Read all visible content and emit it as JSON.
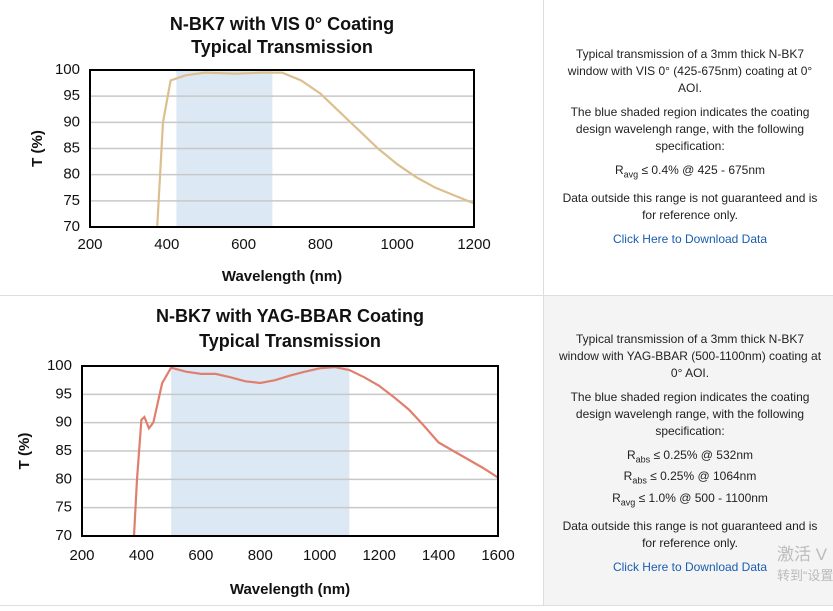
{
  "chart_data": [
    {
      "type": "line",
      "title": [
        "N-BK7 with VIS 0° Coating",
        "Typical Transmission"
      ],
      "x_label": "Wavelength (nm)",
      "y_label": "T (%)",
      "x": [
        375,
        390,
        410,
        450,
        500,
        580,
        650,
        700,
        750,
        800,
        850,
        900,
        950,
        1000,
        1050,
        1100,
        1150,
        1200
      ],
      "values": [
        70,
        90,
        98,
        99,
        99.5,
        99.3,
        99.5,
        99.5,
        98,
        95.5,
        92,
        88.5,
        85,
        82,
        79.5,
        77.5,
        76,
        74.5
      ],
      "color": "#dcbf8f",
      "highlight": [
        425,
        675
      ],
      "highlight_color": "#dce9f5",
      "xlim": [
        200,
        1200
      ],
      "xticks": [
        200,
        400,
        600,
        800,
        1000,
        1200
      ],
      "ylim": [
        70,
        100
      ],
      "yticks": [
        70,
        75,
        80,
        85,
        90,
        95,
        100
      ],
      "grid": true
    },
    {
      "type": "line",
      "title": [
        "N-BK7 with YAG-BBAR Coating",
        "Typical Transmission"
      ],
      "x_label": "Wavelength (nm)",
      "y_label": "T (%)",
      "x": [
        375,
        385,
        400,
        410,
        425,
        440,
        470,
        500,
        550,
        600,
        650,
        700,
        750,
        800,
        850,
        900,
        950,
        1000,
        1050,
        1100,
        1150,
        1200,
        1250,
        1300,
        1350,
        1400,
        1450,
        1500,
        1550,
        1600
      ],
      "values": [
        70,
        80,
        90.5,
        91,
        89,
        90,
        97,
        99.7,
        99,
        98.6,
        98.6,
        98,
        97.3,
        97,
        97.5,
        98.3,
        99,
        99.6,
        99.8,
        99.3,
        98,
        96.5,
        94.5,
        92.3,
        89.5,
        86.5,
        85,
        83.5,
        82,
        80.3
      ],
      "color": "#e07f6e",
      "highlight": [
        500,
        1100
      ],
      "highlight_color": "#dce9f5",
      "xlim": [
        200,
        1600
      ],
      "xticks": [
        200,
        400,
        600,
        800,
        1000,
        1200,
        1400,
        1600
      ],
      "ylim": [
        70,
        100
      ],
      "yticks": [
        70,
        75,
        80,
        85,
        90,
        95,
        100
      ],
      "grid": true
    }
  ],
  "panels": [
    {
      "intro": "Typical transmission of a 3mm thick N-BK7 window with VIS 0° (425-675nm) coating at 0° AOI.",
      "region": "The blue shaded region indicates the coating design wavelengh range, with the following specification:",
      "specs": [
        {
          "symbol": "R",
          "sub": "avg",
          "text": "≤ 0.4% @ 425 - 675nm"
        }
      ],
      "note": "Data outside this range is not guaranteed and is for reference only.",
      "link": "Click Here to Download Data"
    },
    {
      "intro": "Typical transmission of a 3mm thick N-BK7 window with YAG-BBAR (500-1100nm) coating at 0° AOI.",
      "region": "The blue shaded region indicates the coating design wavelengh range, with the following specification:",
      "specs": [
        {
          "symbol": "R",
          "sub": "abs",
          "text": "≤ 0.25% @ 532nm"
        },
        {
          "symbol": "R",
          "sub": "abs",
          "text": "≤ 0.25% @ 1064nm"
        },
        {
          "symbol": "R",
          "sub": "avg",
          "text": "≤ 1.0% @ 500 - 1100nm"
        }
      ],
      "note": "Data outside this range is not guaranteed and is for reference only.",
      "link": "Click Here to Download Data"
    }
  ],
  "watermark": [
    "激活 V",
    "转到“设置"
  ]
}
